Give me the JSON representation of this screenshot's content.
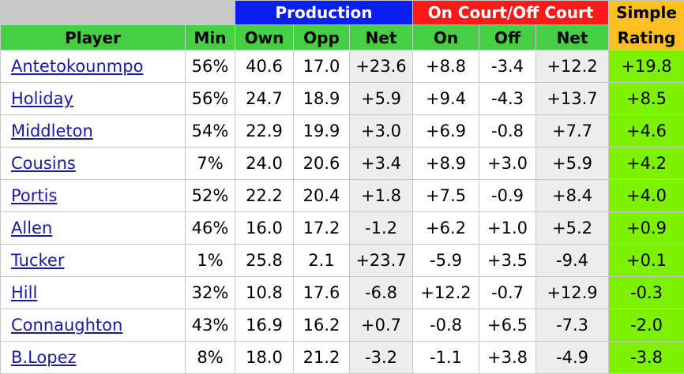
{
  "groups": {
    "production": "Production",
    "on_off": "On Court/Off Court",
    "simple": "Simple"
  },
  "columns": {
    "player": "Player",
    "min": "Min",
    "own": "Own",
    "opp": "Opp",
    "net": "Net",
    "on": "On",
    "off": "Off",
    "onoff_net": "Net",
    "rating": "Rating"
  },
  "rows": [
    {
      "player": "Antetokounmpo",
      "min": "56%",
      "own": "40.6",
      "opp": "17.0",
      "net": "+23.6",
      "on": "+8.8",
      "off": "-3.4",
      "onoff_net": "+12.2",
      "rating": "+19.8"
    },
    {
      "player": "Holiday",
      "min": "56%",
      "own": "24.7",
      "opp": "18.9",
      "net": "+5.9",
      "on": "+9.4",
      "off": "-4.3",
      "onoff_net": "+13.7",
      "rating": "+8.5"
    },
    {
      "player": "Middleton",
      "min": "54%",
      "own": "22.9",
      "opp": "19.9",
      "net": "+3.0",
      "on": "+6.9",
      "off": "-0.8",
      "onoff_net": "+7.7",
      "rating": "+4.6"
    },
    {
      "player": "Cousins",
      "min": "7%",
      "own": "24.0",
      "opp": "20.6",
      "net": "+3.4",
      "on": "+8.9",
      "off": "+3.0",
      "onoff_net": "+5.9",
      "rating": "+4.2"
    },
    {
      "player": "Portis",
      "min": "52%",
      "own": "22.2",
      "opp": "20.4",
      "net": "+1.8",
      "on": "+7.5",
      "off": "-0.9",
      "onoff_net": "+8.4",
      "rating": "+4.0"
    },
    {
      "player": "Allen",
      "min": "46%",
      "own": "16.0",
      "opp": "17.2",
      "net": "-1.2",
      "on": "+6.2",
      "off": "+1.0",
      "onoff_net": "+5.2",
      "rating": "+0.9"
    },
    {
      "player": "Tucker",
      "min": "1%",
      "own": "25.8",
      "opp": "2.1",
      "net": "+23.7",
      "on": "-5.9",
      "off": "+3.5",
      "onoff_net": "-9.4",
      "rating": "+0.1"
    },
    {
      "player": "Hill",
      "min": "32%",
      "own": "10.8",
      "opp": "17.6",
      "net": "-6.8",
      "on": "+12.2",
      "off": "-0.7",
      "onoff_net": "+12.9",
      "rating": "-0.3"
    },
    {
      "player": "Connaughton",
      "min": "43%",
      "own": "16.9",
      "opp": "16.2",
      "net": "+0.7",
      "on": "-0.8",
      "off": "+6.5",
      "onoff_net": "-7.3",
      "rating": "-2.0"
    },
    {
      "player": "B.Lopez",
      "min": "8%",
      "own": "18.0",
      "opp": "21.2",
      "net": "-3.2",
      "on": "-1.1",
      "off": "+3.8",
      "onoff_net": "-4.9",
      "rating": "-3.8"
    }
  ],
  "colors": {
    "production_header": "#0a1ef0",
    "on_off_header": "#ff1a1a",
    "simple_rating_header": "#ffc020",
    "column_header": "#44cf44",
    "net_cell": "#ededed",
    "rating_cell": "#7cf200",
    "player_link": "#1a1aa6"
  }
}
